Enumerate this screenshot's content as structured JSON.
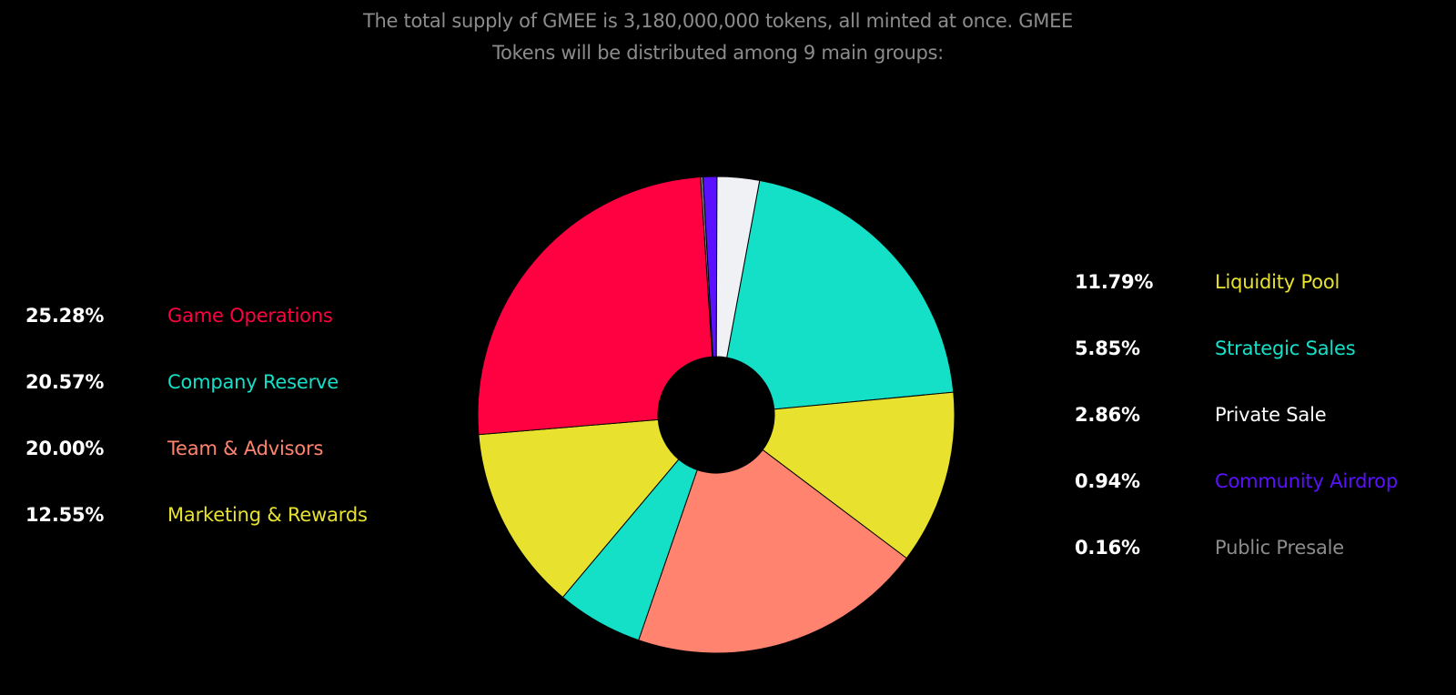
{
  "intro": {
    "line1": "The total supply of GMEE is 3,180,000,000 tokens, all minted at once. GMEE",
    "line2": "Tokens will be distributed among 9 main groups:"
  },
  "legend_left": [
    {
      "percent": "25.28%",
      "label": "Game Operations",
      "color": "#ff0040"
    },
    {
      "percent": "20.57%",
      "label": "Company Reserve",
      "color": "#14e0c8"
    },
    {
      "percent": "20.00%",
      "label": "Team & Advisors",
      "color": "#ff836e"
    },
    {
      "percent": "12.55%",
      "label": "Marketing & Rewards",
      "color": "#e8e22e"
    }
  ],
  "legend_right": [
    {
      "percent": "11.79%",
      "label": "Liquidity Pool",
      "color": "#e8e22e"
    },
    {
      "percent": "5.85%",
      "label": "Strategic Sales",
      "color": "#14e0c8"
    },
    {
      "percent": "2.86%",
      "label": "Private Sale",
      "color": "#ffffff"
    },
    {
      "percent": "0.94%",
      "label": "Community Airdrop",
      "color": "#5b10ff"
    },
    {
      "percent": "0.16%",
      "label": "Public Presale",
      "color": "#8c8c8c"
    }
  ],
  "chart_data": {
    "type": "pie",
    "donut": true,
    "start_angle_deg": 10.5,
    "direction": "clockwise",
    "slices": [
      {
        "label": "Company Reserve",
        "value": 20.57,
        "color": "#14e0c8"
      },
      {
        "label": "Liquidity Pool",
        "value": 11.79,
        "color": "#e8e22e"
      },
      {
        "label": "Team & Advisors",
        "value": 20.0,
        "color": "#ff836e"
      },
      {
        "label": "Strategic Sales",
        "value": 5.85,
        "color": "#14e0c8"
      },
      {
        "label": "Marketing & Rewards",
        "value": 12.55,
        "color": "#e8e22e"
      },
      {
        "label": "Game Operations",
        "value": 25.28,
        "color": "#ff0040"
      },
      {
        "label": "Public Presale",
        "value": 0.16,
        "color": "#8c8c8c"
      },
      {
        "label": "Community Airdrop",
        "value": 0.94,
        "color": "#5b10ff"
      },
      {
        "label": "Private Sale",
        "value": 2.86,
        "color": "#f0f1f4"
      }
    ]
  }
}
